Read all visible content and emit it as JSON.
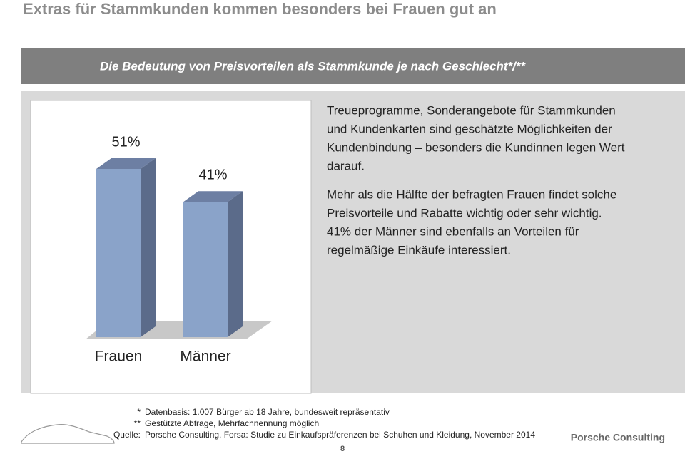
{
  "title": "Extras für Stammkunden kommen besonders bei Frauen gut an",
  "banner": "Die Bedeutung von Preisvorteilen als Stammkunde je nach Geschlecht*/**",
  "paragraphs": [
    [
      "Treueprogramme, Sonderangebote für Stammkunden",
      "und Kundenkarten sind geschätzte Möglichkeiten der",
      "Kundenbindung – besonders die Kundinnen legen Wert",
      "darauf."
    ],
    [
      "Mehr als die Hälfte der befragten Frauen findet solche",
      "Preisvorteile und Rabatte wichtig oder sehr wichtig.",
      "41% der Männer sind ebenfalls an Vorteilen für",
      "regelmäßige Einkäufe interessiert."
    ]
  ],
  "footnotes": [
    {
      "marker": "*",
      "text": "Datenbasis: 1.007 Bürger ab 18 Jahre, bundesweit repräsentativ"
    },
    {
      "marker": "**",
      "text": "Gestützte Abfrage, Mehrfachnennung möglich"
    },
    {
      "marker": "Quelle:",
      "text": "Porsche Consulting, Forsa: Studie zu Einkaufspräferenzen bei Schuhen und Kleidung, November 2014"
    }
  ],
  "brand": "Porsche Consulting",
  "page": "8",
  "chart_data": {
    "type": "bar",
    "categories": [
      "Frauen",
      "Männer"
    ],
    "values": [
      51,
      41
    ],
    "value_labels": [
      "51%",
      "41%"
    ],
    "color": "#8aa3c9"
  }
}
